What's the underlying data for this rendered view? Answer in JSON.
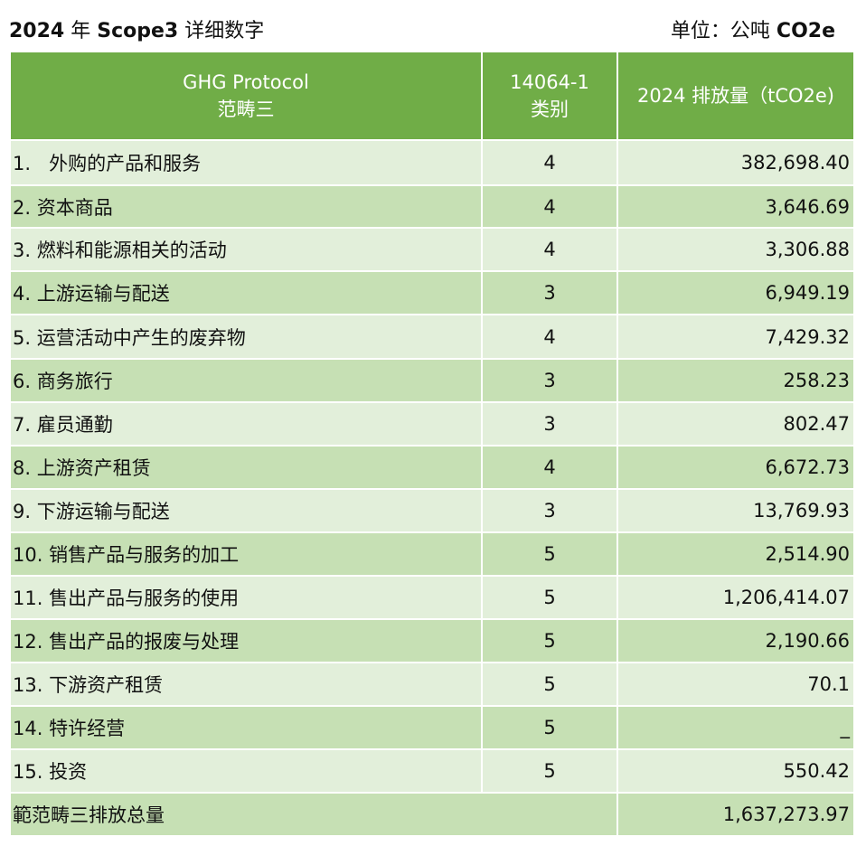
{
  "title": {
    "left_year": "2024",
    "left_nian": "年",
    "left_scope": "Scope3",
    "left_rest": "详细数字",
    "right_text": "单位：公吨",
    "right_unit": "CO2e"
  },
  "table": {
    "headers": {
      "col1_line1": "GHG Protocol",
      "col1_line2": "范畴三",
      "col2_line1": "14064-1",
      "col2_line2": "类别",
      "col3": "2024  排放量（tCO2e)"
    },
    "rows": [
      {
        "num": "1.",
        "label": "外购的产品和服务",
        "iso": "4",
        "value": "382,698.40"
      },
      {
        "num": "2.",
        "label": "资本商品",
        "iso": "4",
        "value": "3,646.69"
      },
      {
        "num": "3.",
        "label": "燃料和能源相关的活动",
        "iso": "4",
        "value": "3,306.88"
      },
      {
        "num": "4.",
        "label": "上游运输与配送",
        "iso": "3",
        "value": "6,949.19"
      },
      {
        "num": "5.",
        "label": "运营活动中产生的废弃物",
        "iso": "4",
        "value": "7,429.32"
      },
      {
        "num": "6.",
        "label": "商务旅行",
        "iso": "3",
        "value": "258.23"
      },
      {
        "num": "7.",
        "label": "雇员通勤",
        "iso": "3",
        "value": "802.47"
      },
      {
        "num": "8.",
        "label": "上游资产租赁",
        "iso": "4",
        "value": "6,672.73"
      },
      {
        "num": "9.",
        "label": "下游运输与配送",
        "iso": "3",
        "value": "13,769.93"
      },
      {
        "num": "10.",
        "label": "销售产品与服务的加工",
        "iso": "5",
        "value": "2,514.90"
      },
      {
        "num": "11.",
        "label": "售出产品与服务的使用",
        "iso": "5",
        "value": "1,206,414.07"
      },
      {
        "num": "12.",
        "label": "售出产品的报废与处理",
        "iso": "5",
        "value": "2,190.66"
      },
      {
        "num": "13.",
        "label": "下游资产租赁",
        "iso": "5",
        "value": "70.1"
      },
      {
        "num": "14.",
        "label": "特许经营",
        "iso": "5",
        "value": "_"
      },
      {
        "num": "15.",
        "label": "投资",
        "iso": "5",
        "value": "550.42"
      }
    ],
    "total": {
      "label": "範范畴三排放总量",
      "value": "1,637,273.97"
    }
  },
  "colors": {
    "header_bg": "#70ad47",
    "row_light": "#e2efda",
    "row_dark": "#c6e0b4",
    "header_text": "#ffffff"
  }
}
